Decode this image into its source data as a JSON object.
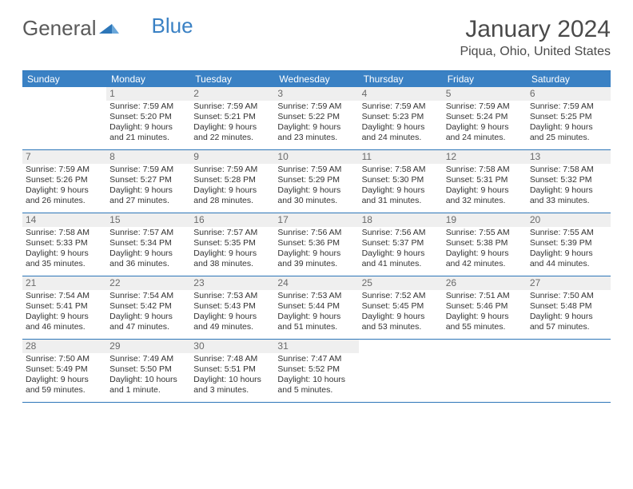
{
  "brand": {
    "part1": "General",
    "part2": "Blue"
  },
  "title": "January 2024",
  "location": "Piqua, Ohio, United States",
  "colors": {
    "header_bg": "#3a81c4",
    "border": "#2d76b8",
    "shaded": "#efefef",
    "text": "#333333",
    "title_text": "#4a4a4a"
  },
  "day_names": [
    "Sunday",
    "Monday",
    "Tuesday",
    "Wednesday",
    "Thursday",
    "Friday",
    "Saturday"
  ],
  "weeks": [
    [
      {
        "n": "",
        "sr": "",
        "ss": "",
        "dl": ""
      },
      {
        "n": "1",
        "sr": "Sunrise: 7:59 AM",
        "ss": "Sunset: 5:20 PM",
        "dl": "Daylight: 9 hours and 21 minutes."
      },
      {
        "n": "2",
        "sr": "Sunrise: 7:59 AM",
        "ss": "Sunset: 5:21 PM",
        "dl": "Daylight: 9 hours and 22 minutes."
      },
      {
        "n": "3",
        "sr": "Sunrise: 7:59 AM",
        "ss": "Sunset: 5:22 PM",
        "dl": "Daylight: 9 hours and 23 minutes."
      },
      {
        "n": "4",
        "sr": "Sunrise: 7:59 AM",
        "ss": "Sunset: 5:23 PM",
        "dl": "Daylight: 9 hours and 24 minutes."
      },
      {
        "n": "5",
        "sr": "Sunrise: 7:59 AM",
        "ss": "Sunset: 5:24 PM",
        "dl": "Daylight: 9 hours and 24 minutes."
      },
      {
        "n": "6",
        "sr": "Sunrise: 7:59 AM",
        "ss": "Sunset: 5:25 PM",
        "dl": "Daylight: 9 hours and 25 minutes."
      }
    ],
    [
      {
        "n": "7",
        "sr": "Sunrise: 7:59 AM",
        "ss": "Sunset: 5:26 PM",
        "dl": "Daylight: 9 hours and 26 minutes."
      },
      {
        "n": "8",
        "sr": "Sunrise: 7:59 AM",
        "ss": "Sunset: 5:27 PM",
        "dl": "Daylight: 9 hours and 27 minutes."
      },
      {
        "n": "9",
        "sr": "Sunrise: 7:59 AM",
        "ss": "Sunset: 5:28 PM",
        "dl": "Daylight: 9 hours and 28 minutes."
      },
      {
        "n": "10",
        "sr": "Sunrise: 7:59 AM",
        "ss": "Sunset: 5:29 PM",
        "dl": "Daylight: 9 hours and 30 minutes."
      },
      {
        "n": "11",
        "sr": "Sunrise: 7:58 AM",
        "ss": "Sunset: 5:30 PM",
        "dl": "Daylight: 9 hours and 31 minutes."
      },
      {
        "n": "12",
        "sr": "Sunrise: 7:58 AM",
        "ss": "Sunset: 5:31 PM",
        "dl": "Daylight: 9 hours and 32 minutes."
      },
      {
        "n": "13",
        "sr": "Sunrise: 7:58 AM",
        "ss": "Sunset: 5:32 PM",
        "dl": "Daylight: 9 hours and 33 minutes."
      }
    ],
    [
      {
        "n": "14",
        "sr": "Sunrise: 7:58 AM",
        "ss": "Sunset: 5:33 PM",
        "dl": "Daylight: 9 hours and 35 minutes."
      },
      {
        "n": "15",
        "sr": "Sunrise: 7:57 AM",
        "ss": "Sunset: 5:34 PM",
        "dl": "Daylight: 9 hours and 36 minutes."
      },
      {
        "n": "16",
        "sr": "Sunrise: 7:57 AM",
        "ss": "Sunset: 5:35 PM",
        "dl": "Daylight: 9 hours and 38 minutes."
      },
      {
        "n": "17",
        "sr": "Sunrise: 7:56 AM",
        "ss": "Sunset: 5:36 PM",
        "dl": "Daylight: 9 hours and 39 minutes."
      },
      {
        "n": "18",
        "sr": "Sunrise: 7:56 AM",
        "ss": "Sunset: 5:37 PM",
        "dl": "Daylight: 9 hours and 41 minutes."
      },
      {
        "n": "19",
        "sr": "Sunrise: 7:55 AM",
        "ss": "Sunset: 5:38 PM",
        "dl": "Daylight: 9 hours and 42 minutes."
      },
      {
        "n": "20",
        "sr": "Sunrise: 7:55 AM",
        "ss": "Sunset: 5:39 PM",
        "dl": "Daylight: 9 hours and 44 minutes."
      }
    ],
    [
      {
        "n": "21",
        "sr": "Sunrise: 7:54 AM",
        "ss": "Sunset: 5:41 PM",
        "dl": "Daylight: 9 hours and 46 minutes."
      },
      {
        "n": "22",
        "sr": "Sunrise: 7:54 AM",
        "ss": "Sunset: 5:42 PM",
        "dl": "Daylight: 9 hours and 47 minutes."
      },
      {
        "n": "23",
        "sr": "Sunrise: 7:53 AM",
        "ss": "Sunset: 5:43 PM",
        "dl": "Daylight: 9 hours and 49 minutes."
      },
      {
        "n": "24",
        "sr": "Sunrise: 7:53 AM",
        "ss": "Sunset: 5:44 PM",
        "dl": "Daylight: 9 hours and 51 minutes."
      },
      {
        "n": "25",
        "sr": "Sunrise: 7:52 AM",
        "ss": "Sunset: 5:45 PM",
        "dl": "Daylight: 9 hours and 53 minutes."
      },
      {
        "n": "26",
        "sr": "Sunrise: 7:51 AM",
        "ss": "Sunset: 5:46 PM",
        "dl": "Daylight: 9 hours and 55 minutes."
      },
      {
        "n": "27",
        "sr": "Sunrise: 7:50 AM",
        "ss": "Sunset: 5:48 PM",
        "dl": "Daylight: 9 hours and 57 minutes."
      }
    ],
    [
      {
        "n": "28",
        "sr": "Sunrise: 7:50 AM",
        "ss": "Sunset: 5:49 PM",
        "dl": "Daylight: 9 hours and 59 minutes."
      },
      {
        "n": "29",
        "sr": "Sunrise: 7:49 AM",
        "ss": "Sunset: 5:50 PM",
        "dl": "Daylight: 10 hours and 1 minute."
      },
      {
        "n": "30",
        "sr": "Sunrise: 7:48 AM",
        "ss": "Sunset: 5:51 PM",
        "dl": "Daylight: 10 hours and 3 minutes."
      },
      {
        "n": "31",
        "sr": "Sunrise: 7:47 AM",
        "ss": "Sunset: 5:52 PM",
        "dl": "Daylight: 10 hours and 5 minutes."
      },
      {
        "n": "",
        "sr": "",
        "ss": "",
        "dl": ""
      },
      {
        "n": "",
        "sr": "",
        "ss": "",
        "dl": ""
      },
      {
        "n": "",
        "sr": "",
        "ss": "",
        "dl": ""
      }
    ]
  ]
}
